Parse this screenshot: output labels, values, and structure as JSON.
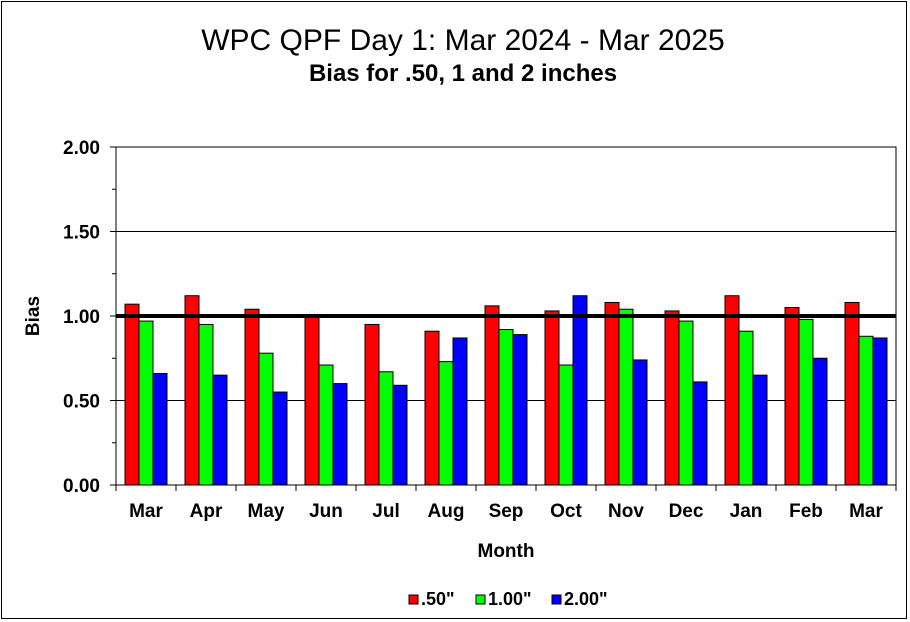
{
  "chart_data": {
    "type": "bar",
    "title": "WPC QPF Day 1: Mar 2024 - Mar 2025",
    "subtitle": "Bias for .50, 1 and 2 inches",
    "xlabel": "Month",
    "ylabel": "Bias",
    "ylim": [
      0,
      2
    ],
    "yticks": [
      "0.00",
      "0.50",
      "1.00",
      "1.50",
      "2.00"
    ],
    "grid": true,
    "reference_line": 1.0,
    "legend_position": "bottom",
    "categories": [
      "Mar",
      "Apr",
      "May",
      "Jun",
      "Jul",
      "Aug",
      "Sep",
      "Oct",
      "Nov",
      "Dec",
      "Jan",
      "Feb",
      "Mar"
    ],
    "series": [
      {
        "name": ".50\"",
        "color": "#ff0000",
        "values": [
          1.07,
          1.12,
          1.04,
          1.0,
          0.95,
          0.91,
          1.06,
          1.03,
          1.08,
          1.03,
          1.12,
          1.05,
          1.08
        ]
      },
      {
        "name": "1.00\"",
        "color": "#00ff00",
        "values": [
          0.97,
          0.95,
          0.78,
          0.71,
          0.67,
          0.73,
          0.92,
          0.71,
          1.04,
          0.97,
          0.91,
          0.98,
          0.88
        ]
      },
      {
        "name": "2.00\"",
        "color": "#0000ff",
        "values": [
          0.66,
          0.65,
          0.55,
          0.6,
          0.59,
          0.87,
          0.89,
          1.12,
          0.74,
          0.61,
          0.65,
          0.75,
          0.87
        ]
      }
    ]
  }
}
